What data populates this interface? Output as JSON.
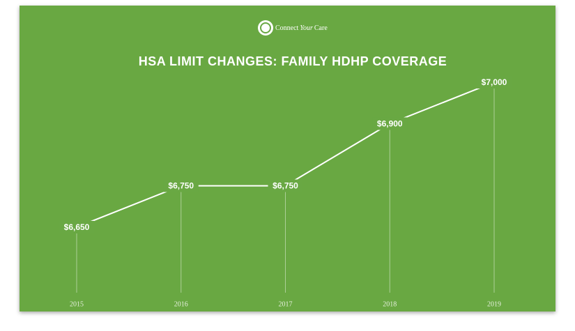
{
  "logo": [
    "Connect",
    "Your",
    "Care"
  ],
  "chart_data": {
    "type": "line",
    "title": "HSA LIMIT CHANGES: FAMILY HDHP COVERAGE",
    "categories": [
      "2015",
      "2016",
      "2017",
      "2018",
      "2019"
    ],
    "values": [
      6650,
      6750,
      6750,
      6900,
      7000
    ],
    "value_labels": [
      "$6,650",
      "$6,750",
      "$6,750",
      "$6,900",
      "$7,000"
    ],
    "color": "#ffffff",
    "background": "#69a843"
  }
}
